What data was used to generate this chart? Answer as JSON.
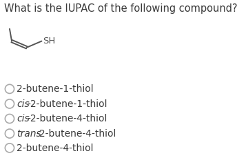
{
  "title": "What is the IUPAC of the following compound?",
  "title_fontsize": 10.5,
  "options": [
    {
      "text": "2-butene-1-thiol",
      "italic_prefix": ""
    },
    {
      "text": "cis-2-butene-1-thiol",
      "italic_prefix": "cis"
    },
    {
      "text": "cis-2-butene-4-thiol",
      "italic_prefix": "cis"
    },
    {
      "text": "trans-2-butene-4-thiol",
      "italic_prefix": "trans"
    },
    {
      "text": "2-butene-4-thiol",
      "italic_prefix": ""
    }
  ],
  "option_fontsize": 10,
  "background_color": "#ffffff",
  "text_color": "#3a3a3a",
  "circle_color": "#aaaaaa",
  "mol_color": "#555555",
  "molecule_sh_label": "SH",
  "mol_lw": 1.4
}
